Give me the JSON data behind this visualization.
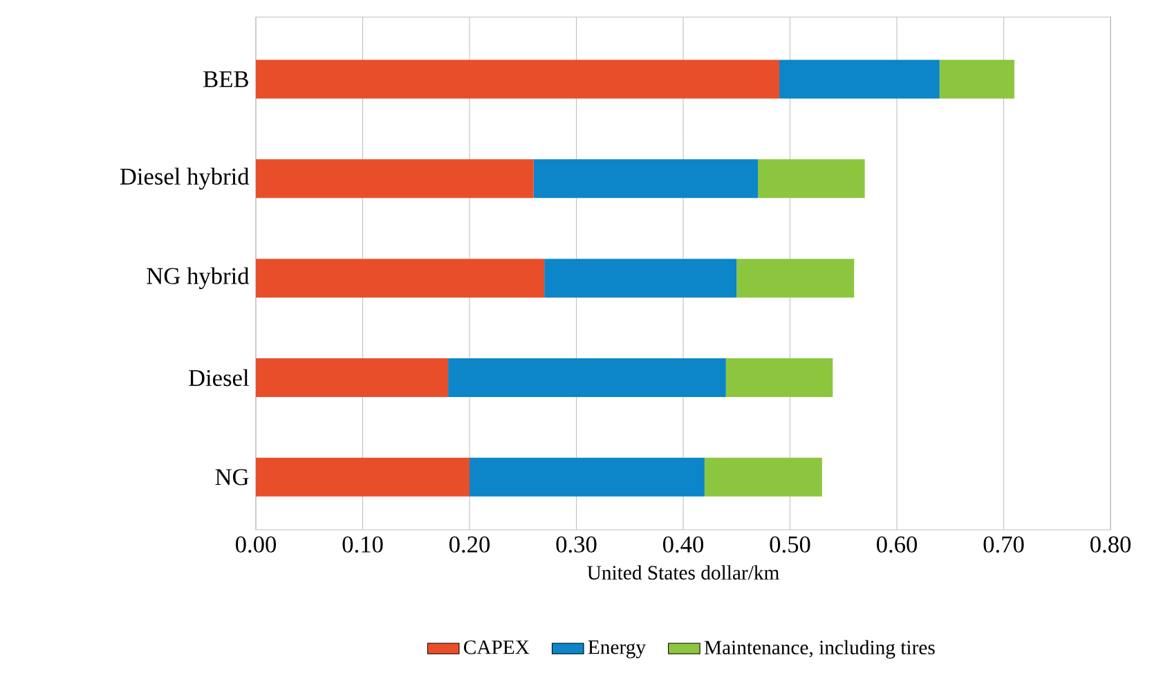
{
  "chart_data": {
    "type": "bar",
    "orientation": "horizontal",
    "stacked": true,
    "categories": [
      "BEB",
      "Diesel hybrid",
      "NG hybrid",
      "Diesel",
      "NG"
    ],
    "series": [
      {
        "name": "CAPEX",
        "color": "#e94e2b",
        "values": [
          0.49,
          0.26,
          0.27,
          0.18,
          0.2
        ]
      },
      {
        "name": "Energy",
        "color": "#0c85c9",
        "values": [
          0.15,
          0.21,
          0.18,
          0.26,
          0.22
        ]
      },
      {
        "name": "Maintenance, including tires",
        "color": "#8cc63f",
        "values": [
          0.07,
          0.1,
          0.11,
          0.1,
          0.11
        ]
      }
    ],
    "xlabel": "United States dollar/km",
    "xlim": [
      0,
      0.8
    ],
    "xticks": [
      {
        "value": 0,
        "label": "0.00"
      },
      {
        "value": 0.1,
        "label": "0.10"
      },
      {
        "value": 0.2,
        "label": "0.20"
      },
      {
        "value": 0.3,
        "label": "0.30"
      },
      {
        "value": 0.4,
        "label": "0.40"
      },
      {
        "value": 0.5,
        "label": "0.50"
      },
      {
        "value": 0.6,
        "label": "0.60"
      },
      {
        "value": 0.7,
        "label": "0.70"
      },
      {
        "value": 0.8,
        "label": "0.80"
      }
    ],
    "grid": "x",
    "legend": "bottom"
  }
}
